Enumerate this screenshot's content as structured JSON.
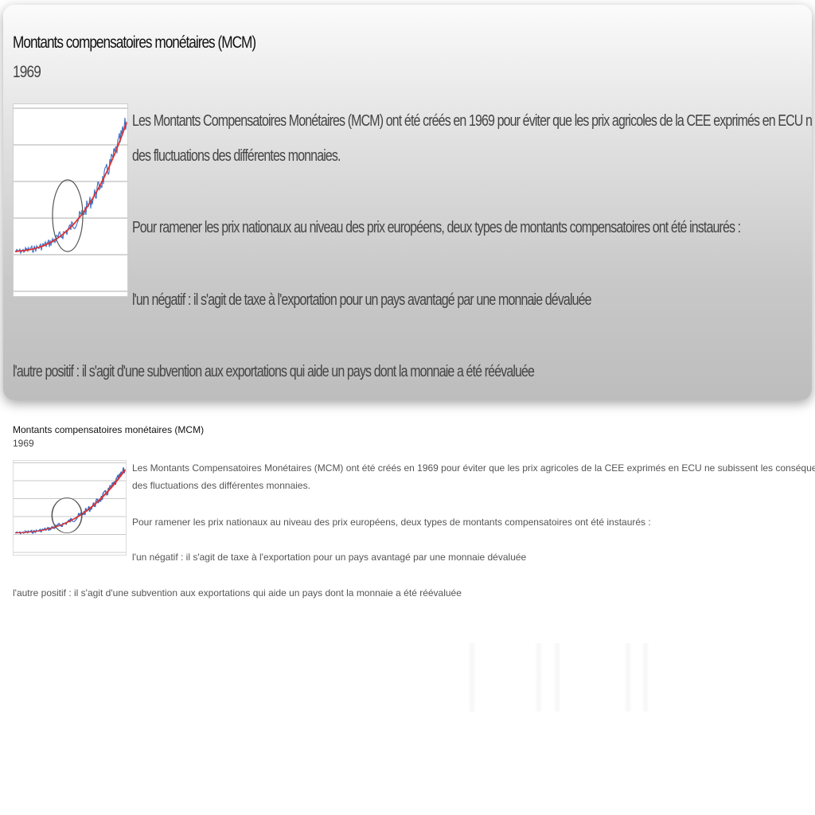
{
  "article": {
    "title": "Montants compensatoires monétaires  (MCM)",
    "year": "1969",
    "paragraphs": {
      "p1_line1": "Les Montants Compensatoires Monétaires (MCM) ont été créés en 1969 pour éviter que les prix agricoles de la CEE exprimés en ECU ne subissent les conséquences",
      "p1_line2": "des fluctuations des différentes monnaies.",
      "p2": "Pour ramener les prix nationaux au niveau des prix européens, deux types de montants compensatoires ont été instaurés :",
      "p3": "l'un négatif : il s'agit de taxe à l'exportation pour un pays avantagé par une monnaie dévaluée",
      "p4": "l'autre positif : il s'agit d'une subvention aux exportations qui aide un pays dont la monnaie a été réévaluée"
    }
  },
  "thumbnail": {
    "icon": "trend-chart-thumbnail",
    "colors": {
      "noise_line": "#3a6fc4",
      "trend_line": "#e03030",
      "circle": "#555555",
      "grid": "#c8c8c8"
    }
  },
  "theme": {
    "zoom_gradient_top": "#fbfbfb",
    "zoom_gradient_bottom": "#bdbdbd"
  }
}
